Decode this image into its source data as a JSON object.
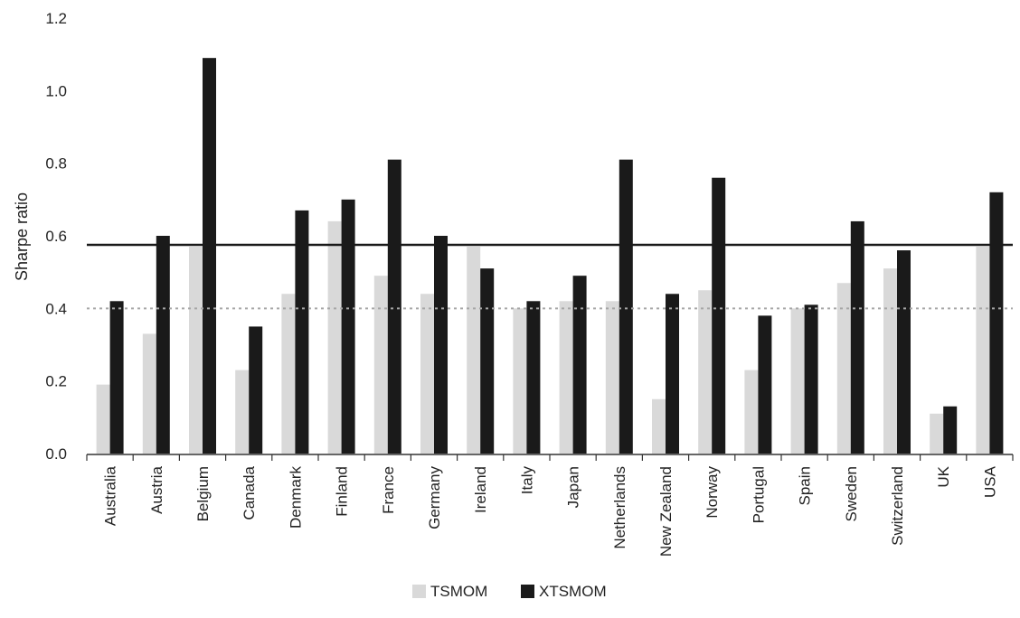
{
  "chart_data": {
    "type": "bar",
    "categories": [
      "Australia",
      "Austria",
      "Belgium",
      "Canada",
      "Denmark",
      "Finland",
      "France",
      "Germany",
      "Ireland",
      "Italy",
      "Japan",
      "Netherlands",
      "New Zealand",
      "Norway",
      "Portugal",
      "Spain",
      "Sweden",
      "Switzerland",
      "UK",
      "USA"
    ],
    "series": [
      {
        "name": "TSMOM",
        "color": "#d9d9d9",
        "values": [
          0.19,
          0.33,
          0.57,
          0.23,
          0.44,
          0.64,
          0.49,
          0.44,
          0.57,
          0.4,
          0.42,
          0.42,
          0.15,
          0.45,
          0.23,
          0.4,
          0.47,
          0.51,
          0.11,
          0.57
        ]
      },
      {
        "name": "XTSMOM",
        "color": "#1a1a1a",
        "values": [
          0.42,
          0.6,
          1.09,
          0.35,
          0.67,
          0.7,
          0.81,
          0.6,
          0.51,
          0.42,
          0.49,
          0.81,
          0.44,
          0.76,
          0.38,
          0.41,
          0.64,
          0.56,
          0.13,
          0.72
        ]
      }
    ],
    "reference_lines": [
      {
        "series": "XTSMOM",
        "value": 0.575,
        "style": "solid",
        "color": "#1a1a1a"
      },
      {
        "series": "TSMOM",
        "value": 0.4,
        "style": "dotted",
        "color": "#a6a6a6"
      }
    ],
    "yticks": [
      "0.0",
      "0.2",
      "0.4",
      "0.6",
      "0.8",
      "1.0",
      "1.2"
    ],
    "ylim": [
      0,
      1.2
    ],
    "title": "",
    "xlabel": "",
    "ylabel": "Sharpe ratio",
    "legend_position": "bottom-center",
    "grid": false
  }
}
